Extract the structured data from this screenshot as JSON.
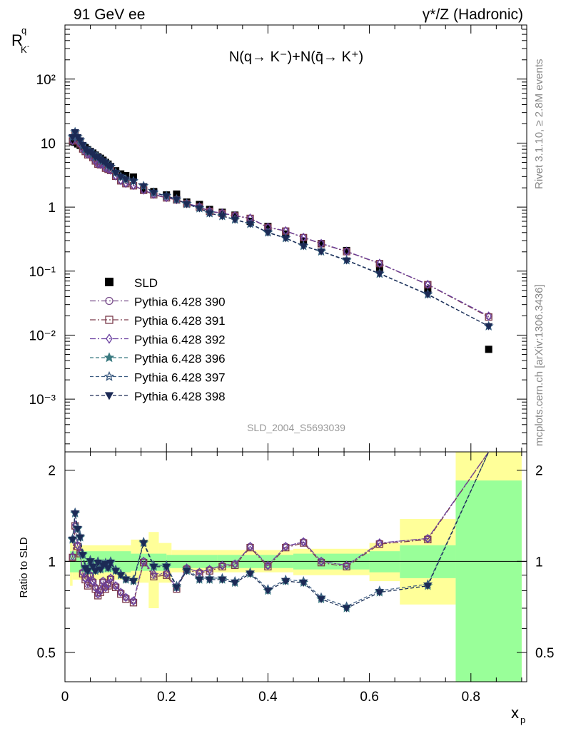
{
  "header": {
    "left": "91 GeV ee",
    "right": "γ*/Z (Hadronic)"
  },
  "side_labels": {
    "top": "Rivet 3.1.10, ≥ 2.8M events",
    "bottom": "mcplots.cern.ch [arXiv:1306.3436]"
  },
  "watermark": "SLD_2004_S5693039",
  "ratio_ylabel": "Ratio to SLD",
  "chart_data": {
    "type": "scatter",
    "title": "N(q→ K⁻)+N(q̄→ K⁺)",
    "xlabel": "x_p",
    "ylabel": "R^q_{K⁻}",
    "xlim": [
      0,
      0.91
    ],
    "ylim_main": [
      0.00015,
      700
    ],
    "yscale_main": "log",
    "ylim_ratio": [
      0.4,
      2.3
    ],
    "yscale_ratio": "log",
    "legend_position": "center-left",
    "x_ticks": [
      "0",
      "0.2",
      "0.4",
      "0.6",
      "0.8"
    ],
    "y_ticks_main": [
      "10⁻³",
      "10⁻²",
      "10⁻¹",
      "1",
      "10",
      "10²"
    ],
    "y_ticks_ratio": [
      "0.5",
      "1",
      "2"
    ],
    "x_data": [
      0.015,
      0.02,
      0.025,
      0.03,
      0.035,
      0.04,
      0.045,
      0.05,
      0.055,
      0.06,
      0.065,
      0.07,
      0.075,
      0.08,
      0.085,
      0.09,
      0.1,
      0.11,
      0.12,
      0.135,
      0.155,
      0.175,
      0.2,
      0.22,
      0.24,
      0.265,
      0.285,
      0.31,
      0.335,
      0.365,
      0.4,
      0.435,
      0.47,
      0.505,
      0.555,
      0.62,
      0.715,
      0.835
    ],
    "data": {
      "name": "SLD",
      "values": [
        10.5,
        10.3,
        9.7,
        9.2,
        8.9,
        8.5,
        7.9,
        7.4,
        7.0,
        6.5,
        6.1,
        5.8,
        5.4,
        5.0,
        4.7,
        4.3,
        3.7,
        3.3,
        3.1,
        2.95,
        1.85,
        1.75,
        1.55,
        1.6,
        1.2,
        1.1,
        0.92,
        0.83,
        0.75,
        0.6,
        0.5,
        0.38,
        0.29,
        0.27,
        0.21,
        0.115,
        0.052,
        0.006
      ],
      "band_inner": [
        [
          0.01,
          0.13,
          0.92,
          1.08
        ],
        [
          0.13,
          0.2,
          0.93,
          1.06
        ],
        [
          0.2,
          0.3,
          0.95,
          1.05
        ],
        [
          0.3,
          0.45,
          0.95,
          1.05
        ],
        [
          0.45,
          0.6,
          0.94,
          1.06
        ],
        [
          0.6,
          0.66,
          0.92,
          1.08
        ],
        [
          0.66,
          0.77,
          0.88,
          1.13
        ],
        [
          0.77,
          0.9,
          0.02,
          1.85
        ]
      ],
      "band_outer": [
        [
          0.01,
          0.015,
          0.83,
          1.17
        ],
        [
          0.015,
          0.13,
          0.87,
          1.13
        ],
        [
          0.13,
          0.165,
          0.85,
          1.18
        ],
        [
          0.165,
          0.185,
          0.7,
          1.25
        ],
        [
          0.185,
          0.21,
          0.85,
          1.15
        ],
        [
          0.21,
          0.45,
          0.92,
          1.09
        ],
        [
          0.45,
          0.6,
          0.9,
          1.1
        ],
        [
          0.6,
          0.66,
          0.86,
          1.15
        ],
        [
          0.66,
          0.77,
          0.72,
          1.38
        ],
        [
          0.77,
          0.9,
          0.02,
          2.35
        ]
      ]
    },
    "series": [
      {
        "name": "Pythia 6.428 390",
        "color": "#7a4f8c",
        "marker": "circle-open",
        "dash": "dashdot",
        "ratio": [
          1.03,
          1.3,
          1.13,
          1.07,
          0.92,
          0.88,
          0.84,
          0.9,
          0.86,
          0.82,
          0.78,
          0.8,
          0.86,
          0.82,
          0.84,
          0.88,
          0.83,
          0.79,
          0.76,
          0.74,
          1.0,
          0.9,
          0.91,
          0.82,
          0.95,
          0.92,
          0.94,
          0.97,
          0.98,
          1.12,
          0.97,
          1.12,
          1.16,
          1.0,
          0.97,
          1.15,
          1.19,
          3.3
        ]
      },
      {
        "name": "Pythia 6.428 391",
        "color": "#7a3a4a",
        "marker": "square-open",
        "dash": "dashdot",
        "ratio": [
          1.03,
          1.31,
          1.12,
          1.06,
          0.91,
          0.87,
          0.83,
          0.89,
          0.85,
          0.81,
          0.77,
          0.79,
          0.85,
          0.81,
          0.83,
          0.87,
          0.82,
          0.78,
          0.75,
          0.73,
          0.99,
          0.89,
          0.9,
          0.81,
          0.94,
          0.91,
          0.93,
          0.96,
          0.97,
          1.11,
          0.96,
          1.11,
          1.15,
          0.99,
          0.96,
          1.14,
          1.18,
          3.2
        ]
      },
      {
        "name": "Pythia 6.428 392",
        "color": "#6a3fa0",
        "marker": "diamond-open",
        "dash": "dashdot",
        "ratio": [
          1.04,
          1.32,
          1.13,
          1.07,
          0.92,
          0.88,
          0.85,
          0.9,
          0.86,
          0.82,
          0.78,
          0.8,
          0.86,
          0.82,
          0.84,
          0.88,
          0.83,
          0.79,
          0.76,
          0.74,
          1.0,
          0.91,
          0.91,
          0.82,
          0.95,
          0.92,
          0.94,
          0.97,
          0.98,
          1.12,
          0.97,
          1.12,
          1.16,
          1.0,
          0.97,
          1.15,
          1.19,
          3.3
        ]
      },
      {
        "name": "Pythia 6.428 396",
        "color": "#3a7a80",
        "marker": "star-filled",
        "dash": "dashed",
        "ratio": [
          1.18,
          1.44,
          1.28,
          1.2,
          1.05,
          0.95,
          0.93,
          1.0,
          0.96,
          0.93,
          0.99,
          0.94,
          0.97,
          0.98,
          0.95,
          0.99,
          0.93,
          0.9,
          0.87,
          0.86,
          1.15,
          0.96,
          0.96,
          0.82,
          0.93,
          0.87,
          0.87,
          0.87,
          0.85,
          0.91,
          0.8,
          0.86,
          0.85,
          0.75,
          0.7,
          0.79,
          0.83,
          2.3
        ]
      },
      {
        "name": "Pythia 6.428 397",
        "color": "#3a5a80",
        "marker": "star-open",
        "dash": "dashed",
        "ratio": [
          1.19,
          1.45,
          1.29,
          1.21,
          1.06,
          0.96,
          0.94,
          1.01,
          0.97,
          0.94,
          1.0,
          0.95,
          0.98,
          0.99,
          0.96,
          1.0,
          0.94,
          0.91,
          0.88,
          0.87,
          1.16,
          0.97,
          0.97,
          0.83,
          0.94,
          0.88,
          0.88,
          0.88,
          0.86,
          0.92,
          0.81,
          0.87,
          0.86,
          0.76,
          0.71,
          0.8,
          0.84,
          2.3
        ]
      },
      {
        "name": "Pythia 6.428 398",
        "color": "#1c2a55",
        "marker": "triangle-down-filled",
        "dash": "dashed",
        "ratio": [
          1.18,
          1.44,
          1.28,
          1.2,
          1.05,
          0.95,
          0.93,
          1.0,
          0.96,
          0.93,
          0.99,
          0.94,
          0.97,
          0.98,
          0.95,
          0.99,
          0.93,
          0.9,
          0.87,
          0.86,
          1.15,
          0.96,
          0.96,
          0.82,
          0.93,
          0.87,
          0.87,
          0.87,
          0.85,
          0.91,
          0.8,
          0.86,
          0.85,
          0.75,
          0.7,
          0.79,
          0.83,
          2.3
        ]
      }
    ]
  }
}
